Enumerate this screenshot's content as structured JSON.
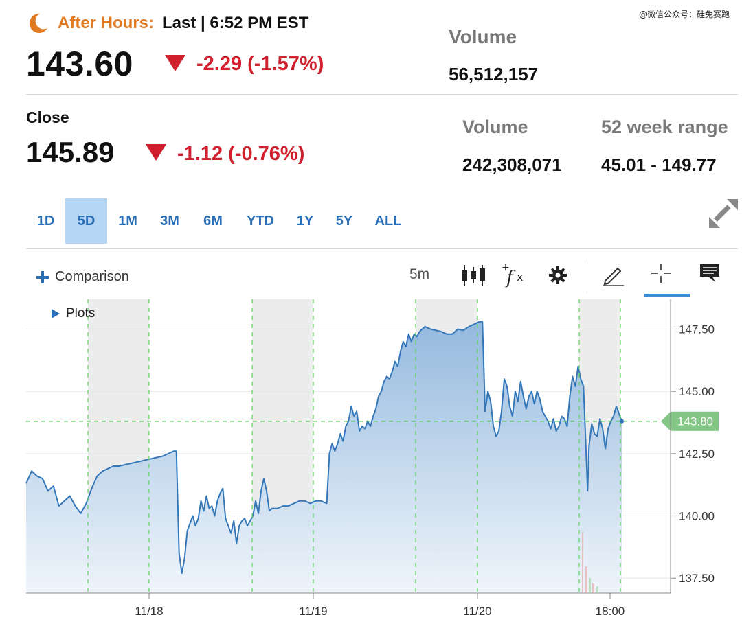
{
  "watermark": "@微信公众号：硅兔赛跑",
  "after_hours": {
    "label": "After Hours:",
    "rest": "Last | 6:52 PM EST",
    "price": "143.60",
    "change": "-2.29 (-1.57%)",
    "volume_label": "Volume",
    "volume": "56,512,157"
  },
  "close": {
    "label": "Close",
    "price": "145.89",
    "change": "-1.12 (-0.76%)",
    "volume_label": "Volume",
    "volume": "242,308,071",
    "range_label": "52 week range",
    "range": "45.01 - 149.77"
  },
  "ranges": [
    "1D",
    "5D",
    "1M",
    "3M",
    "6M",
    "YTD",
    "1Y",
    "5Y",
    "ALL"
  ],
  "active_range": "5D",
  "toolbar": {
    "comparison_label": "Comparison",
    "interval": "5m",
    "plots_label": "Plots"
  },
  "icons": {
    "moon": "moon-icon",
    "expand": "expand-icon",
    "candles": "candlestick-icon",
    "fx": "function-icon",
    "gear": "gear-icon",
    "draw": "pencil-icon",
    "crosshair": "crosshair-icon",
    "annotate": "comment-icon"
  },
  "colors": {
    "accent_orange": "#e07b24",
    "down_red": "#d0202e",
    "link_blue": "#2a6fb6",
    "line_blue": "#3377b8",
    "current_green": "#7cc47f"
  },
  "chart_data": {
    "type": "area",
    "x_ticks": [
      "11/18",
      "11/19",
      "11/20",
      "18:00"
    ],
    "y_ticks": [
      "147.50",
      "145.00",
      "142.50",
      "140.00",
      "137.50"
    ],
    "ylim": [
      136.9,
      148.7
    ],
    "current_value": "143.80",
    "current_value_num": 143.8,
    "series": [
      {
        "values": [
          [
            0,
            141.3
          ],
          [
            2,
            141.8
          ],
          [
            4,
            141.6
          ],
          [
            6,
            141.5
          ],
          [
            8,
            141.0
          ],
          [
            10,
            141.2
          ],
          [
            12,
            140.4
          ],
          [
            14,
            140.6
          ],
          [
            16,
            140.8
          ],
          [
            18,
            140.4
          ],
          [
            20,
            140.1
          ],
          [
            22,
            140.5
          ],
          [
            24,
            141.1
          ],
          [
            26,
            141.6
          ],
          [
            28,
            141.8
          ],
          [
            30,
            141.9
          ],
          [
            32,
            142.0
          ],
          [
            34,
            142.0
          ],
          [
            36,
            142.05
          ],
          [
            38,
            142.1
          ],
          [
            40,
            142.15
          ],
          [
            42,
            142.2
          ],
          [
            44,
            142.25
          ],
          [
            46,
            142.3
          ],
          [
            48,
            142.35
          ],
          [
            50,
            142.4
          ],
          [
            52,
            142.5
          ],
          [
            54,
            142.6
          ],
          [
            55,
            142.6
          ],
          [
            56,
            138.5
          ],
          [
            57,
            137.7
          ],
          [
            58,
            138.3
          ],
          [
            59,
            139.4
          ],
          [
            60,
            139.7
          ],
          [
            61,
            140.0
          ],
          [
            62,
            139.6
          ],
          [
            63,
            139.9
          ],
          [
            64,
            140.6
          ],
          [
            65,
            140.2
          ],
          [
            66,
            140.8
          ],
          [
            67,
            140.3
          ],
          [
            68,
            140.4
          ],
          [
            69,
            140.0
          ],
          [
            70,
            140.6
          ],
          [
            71,
            140.9
          ],
          [
            72,
            141.1
          ],
          [
            73,
            139.9
          ],
          [
            74,
            139.6
          ],
          [
            75,
            139.3
          ],
          [
            76,
            139.8
          ],
          [
            77,
            138.9
          ],
          [
            78,
            139.6
          ],
          [
            79,
            139.8
          ],
          [
            80,
            139.9
          ],
          [
            81,
            139.6
          ],
          [
            82,
            139.8
          ],
          [
            83,
            140.0
          ],
          [
            84,
            140.6
          ],
          [
            85,
            140.1
          ],
          [
            86,
            141.0
          ],
          [
            87,
            141.5
          ],
          [
            88,
            141.0
          ],
          [
            89,
            140.2
          ],
          [
            90,
            140.3
          ],
          [
            92,
            140.3
          ],
          [
            94,
            140.4
          ],
          [
            96,
            140.4
          ],
          [
            98,
            140.5
          ],
          [
            100,
            140.6
          ],
          [
            102,
            140.6
          ],
          [
            104,
            140.5
          ],
          [
            106,
            140.6
          ],
          [
            108,
            140.6
          ],
          [
            110,
            140.5
          ],
          [
            111,
            142.5
          ],
          [
            112,
            142.9
          ],
          [
            113,
            142.6
          ],
          [
            114,
            142.9
          ],
          [
            115,
            143.3
          ],
          [
            116,
            143.0
          ],
          [
            117,
            143.6
          ],
          [
            118,
            143.8
          ],
          [
            119,
            144.4
          ],
          [
            120,
            144.0
          ],
          [
            121,
            144.2
          ],
          [
            122,
            143.4
          ],
          [
            123,
            143.6
          ],
          [
            124,
            143.5
          ],
          [
            125,
            143.8
          ],
          [
            126,
            143.6
          ],
          [
            127,
            144.0
          ],
          [
            128,
            144.3
          ],
          [
            129,
            144.8
          ],
          [
            130,
            145.0
          ],
          [
            131,
            145.4
          ],
          [
            132,
            145.6
          ],
          [
            133,
            145.5
          ],
          [
            134,
            145.8
          ],
          [
            135,
            146.2
          ],
          [
            136,
            146.0
          ],
          [
            137,
            146.6
          ],
          [
            138,
            147.0
          ],
          [
            139,
            146.8
          ],
          [
            140,
            147.3
          ],
          [
            141,
            147.0
          ],
          [
            142,
            147.3
          ],
          [
            143,
            147.2
          ],
          [
            144,
            147.4
          ],
          [
            145,
            147.5
          ],
          [
            146,
            147.6
          ],
          [
            148,
            147.5
          ],
          [
            150,
            147.45
          ],
          [
            152,
            147.4
          ],
          [
            154,
            147.3
          ],
          [
            156,
            147.3
          ],
          [
            158,
            147.5
          ],
          [
            160,
            147.45
          ],
          [
            162,
            147.6
          ],
          [
            164,
            147.7
          ],
          [
            166,
            147.8
          ],
          [
            167,
            147.8
          ],
          [
            168,
            144.2
          ],
          [
            169,
            145.0
          ],
          [
            170,
            144.6
          ],
          [
            171,
            143.6
          ],
          [
            172,
            143.2
          ],
          [
            173,
            143.4
          ],
          [
            174,
            144.2
          ],
          [
            175,
            145.5
          ],
          [
            176,
            145.2
          ],
          [
            177,
            144.4
          ],
          [
            178,
            144.0
          ],
          [
            179,
            145.0
          ],
          [
            180,
            144.6
          ],
          [
            181,
            145.4
          ],
          [
            182,
            144.8
          ],
          [
            183,
            144.3
          ],
          [
            184,
            144.8
          ],
          [
            185,
            145.0
          ],
          [
            186,
            144.5
          ],
          [
            187,
            145.0
          ],
          [
            188,
            144.7
          ],
          [
            189,
            144.2
          ],
          [
            190,
            144.0
          ],
          [
            191,
            143.8
          ],
          [
            192,
            143.5
          ],
          [
            193,
            143.9
          ],
          [
            194,
            143.4
          ],
          [
            195,
            143.6
          ],
          [
            196,
            144.0
          ],
          [
            197,
            143.9
          ],
          [
            198,
            143.6
          ],
          [
            199,
            144.8
          ],
          [
            200,
            145.6
          ],
          [
            201,
            145.2
          ],
          [
            202,
            146.0
          ],
          [
            203,
            145.5
          ],
          [
            204,
            145.2
          ],
          [
            205,
            142.4
          ],
          [
            205.5,
            141.0
          ],
          [
            206,
            142.8
          ],
          [
            207,
            143.7
          ],
          [
            208,
            143.3
          ],
          [
            209,
            143.2
          ],
          [
            210,
            143.9
          ],
          [
            211,
            143.5
          ],
          [
            212,
            142.7
          ],
          [
            213,
            143.5
          ],
          [
            214,
            143.8
          ],
          [
            215,
            144.0
          ],
          [
            216,
            144.4
          ],
          [
            217,
            144.1
          ],
          [
            218,
            143.8
          ]
        ]
      }
    ]
  }
}
